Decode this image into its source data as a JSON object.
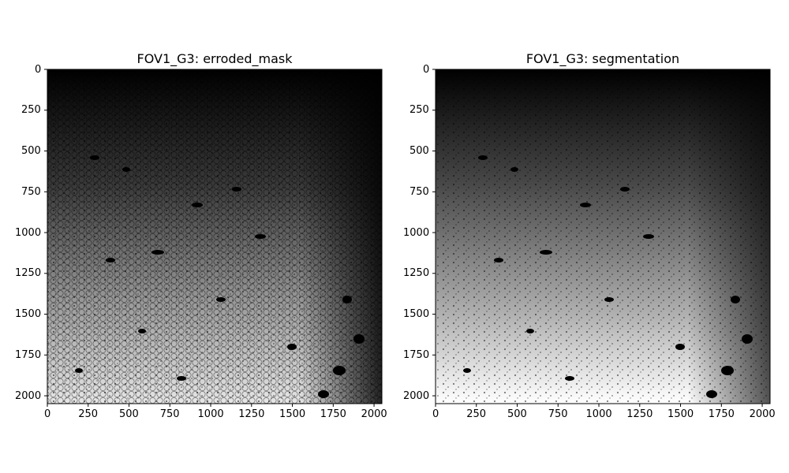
{
  "figure": {
    "panels": [
      {
        "title": "FOV1_G3: erroded_mask",
        "image": "erroded-mask-cell-image",
        "xlim": [
          0,
          2048
        ],
        "ylim": [
          2048,
          0
        ],
        "xticks": [
          "0",
          "250",
          "500",
          "750",
          "1000",
          "1250",
          "1500",
          "1750",
          "2000"
        ],
        "yticks": [
          "0",
          "250",
          "500",
          "750",
          "1000",
          "1250",
          "1500",
          "1750",
          "2000"
        ]
      },
      {
        "title": "FOV1_G3: segmentation",
        "image": "segmentation-cell-image",
        "xlim": [
          0,
          2048
        ],
        "ylim": [
          2048,
          0
        ],
        "xticks": [
          "0",
          "250",
          "500",
          "750",
          "1000",
          "1250",
          "1500",
          "1750",
          "2000"
        ],
        "yticks": [
          "0",
          "250",
          "500",
          "750",
          "1000",
          "1250",
          "1500",
          "1750",
          "2000"
        ]
      }
    ],
    "tick_values": [
      0,
      250,
      500,
      750,
      1000,
      1250,
      1500,
      1750,
      2000
    ],
    "colors": {
      "background": "#ffffff",
      "cells_dark": "#000000",
      "cells_light": "#f2f2f2"
    }
  }
}
